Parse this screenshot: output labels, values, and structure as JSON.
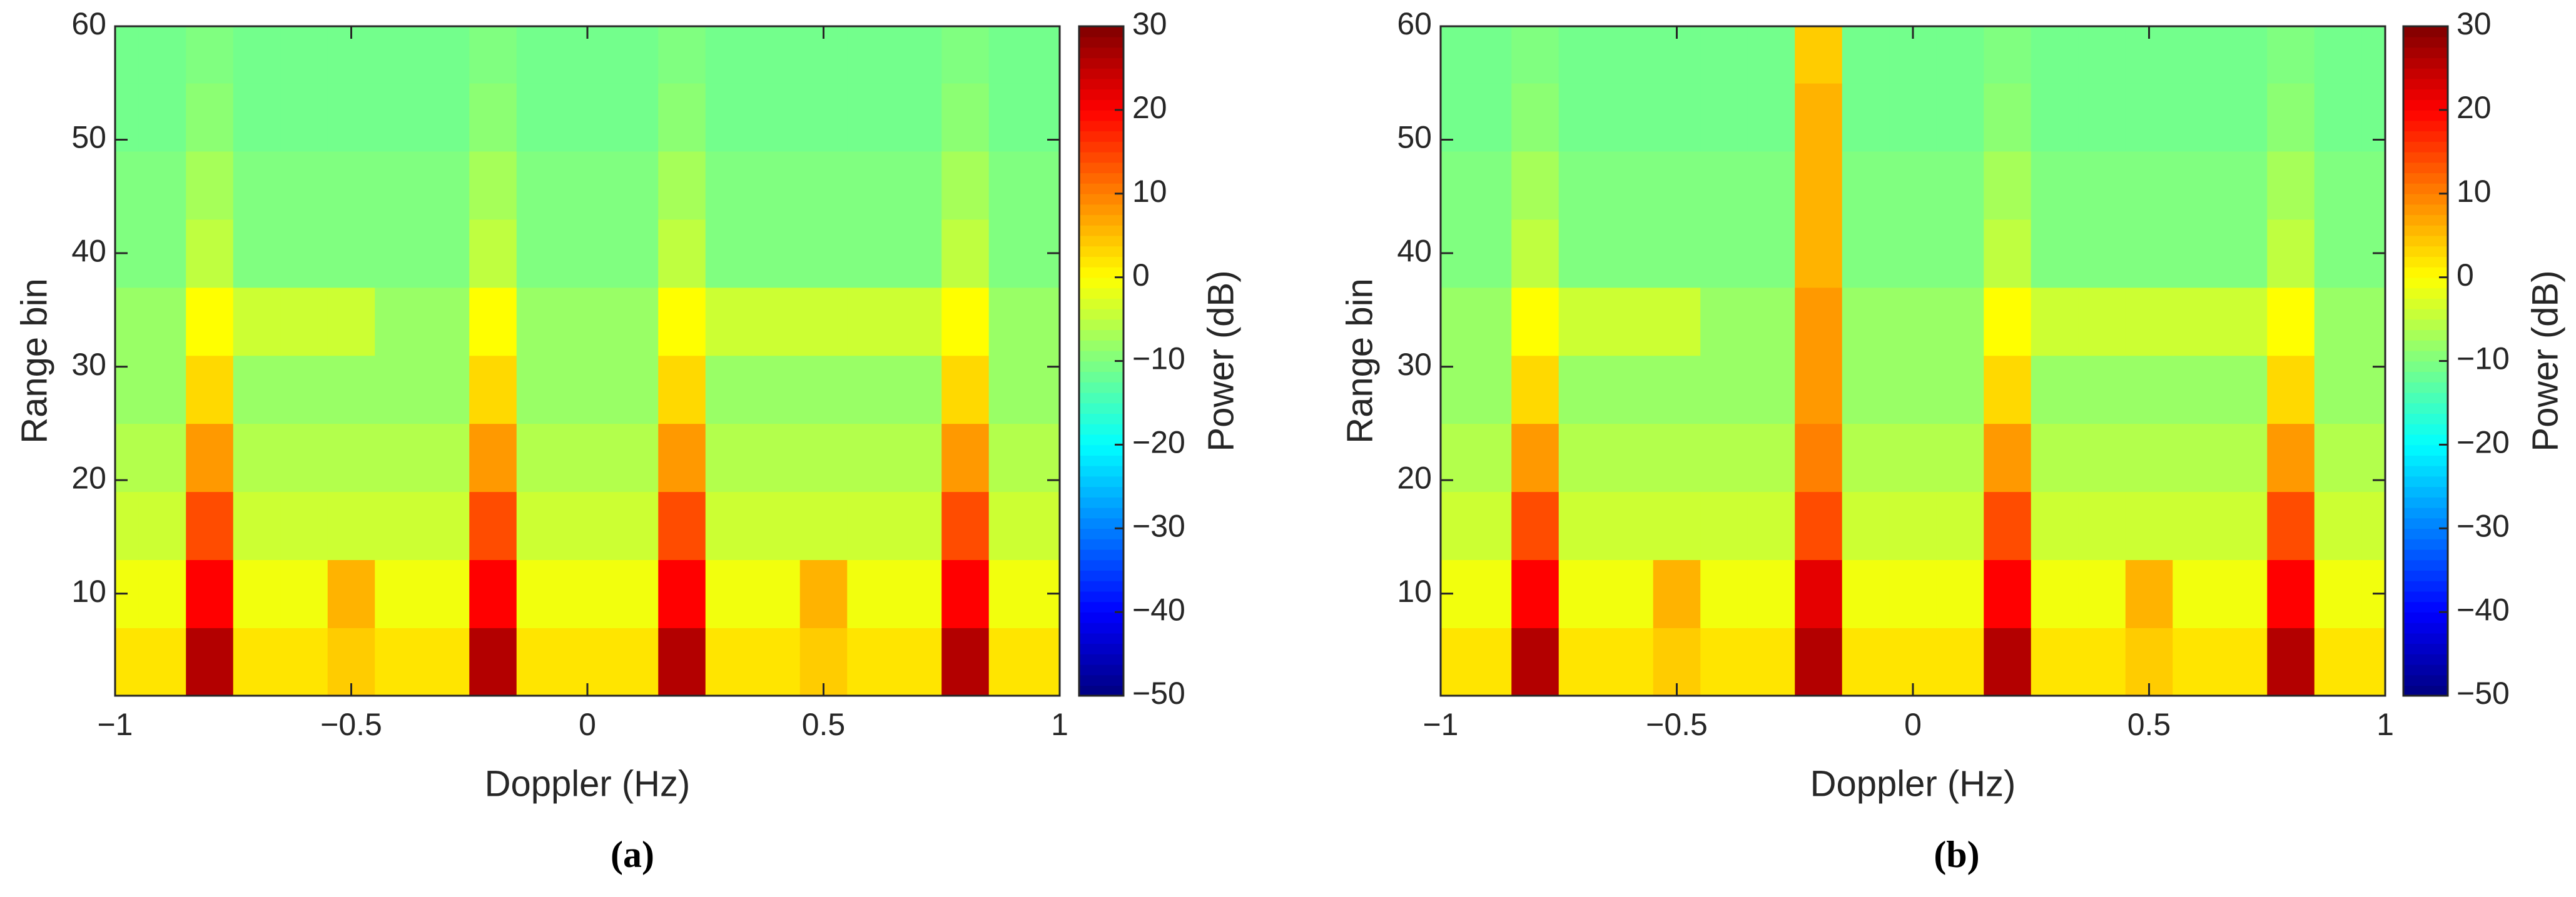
{
  "chart_data": [
    {
      "type": "heatmap",
      "subcaption": "(a)",
      "xlabel": "Doppler (Hz)",
      "ylabel": "Range bin",
      "colorbar_label": "Power (dB)",
      "xlim": [
        -1,
        1
      ],
      "ylim": [
        1,
        60
      ],
      "clim": [
        -50,
        30
      ],
      "colormap": "jet",
      "xticks": [
        {
          "value": -1,
          "label": "−1"
        },
        {
          "value": -0.5,
          "label": "−0.5"
        },
        0,
        0.5,
        1
      ],
      "yticks": [
        10,
        20,
        30,
        40,
        50,
        60
      ],
      "cticks": [
        {
          "value": -50,
          "label": "−50"
        },
        {
          "value": -40,
          "label": "−40"
        },
        {
          "value": -30,
          "label": "−30"
        },
        {
          "value": -20,
          "label": "−20"
        },
        {
          "value": -10,
          "label": "−10"
        },
        0,
        10,
        20,
        30
      ],
      "x": [
        -1,
        -0.9,
        -0.8,
        -0.7,
        -0.6,
        -0.5,
        -0.4,
        -0.3,
        -0.2,
        -0.1,
        0,
        0.1,
        0.2,
        0.3,
        0.4,
        0.5,
        0.6,
        0.7,
        0.8,
        0.9,
        1
      ],
      "y": [
        4,
        10,
        16,
        22,
        28,
        34,
        40,
        46,
        52,
        58
      ],
      "z": [
        [
          2,
          2,
          26,
          2,
          2,
          4,
          2,
          2,
          26,
          2,
          2,
          2,
          26,
          2,
          2,
          4,
          2,
          2,
          26,
          2,
          2
        ],
        [
          -1,
          -1,
          20,
          -1,
          -1,
          6,
          -1,
          -1,
          20,
          -1,
          -1,
          -1,
          20,
          -1,
          -1,
          6,
          -1,
          -1,
          20,
          -1,
          -1
        ],
        [
          -4,
          -4,
          14,
          -4,
          -4,
          -4,
          -4,
          -4,
          14,
          -4,
          -4,
          -4,
          14,
          -4,
          -4,
          -4,
          -4,
          -4,
          14,
          -4,
          -4
        ],
        [
          -6,
          -6,
          8,
          -6,
          -6,
          -6,
          -6,
          -6,
          8,
          -6,
          -6,
          -6,
          8,
          -6,
          -6,
          -6,
          -6,
          -6,
          8,
          -6,
          -6
        ],
        [
          -8,
          -8,
          3,
          -8,
          -8,
          -8,
          -8,
          -8,
          3,
          -8,
          -8,
          -8,
          3,
          -8,
          -8,
          -8,
          -8,
          -8,
          3,
          -8,
          -8
        ],
        [
          -8,
          -8,
          0,
          -4,
          -4,
          -4,
          -8,
          -8,
          0,
          -8,
          -8,
          -8,
          0,
          -4,
          -4,
          -4,
          -4,
          -4,
          0,
          -8,
          -8
        ],
        [
          -10,
          -10,
          -5,
          -10,
          -10,
          -10,
          -10,
          -10,
          -5,
          -10,
          -10,
          -10,
          -5,
          -10,
          -10,
          -10,
          -10,
          -10,
          -5,
          -10,
          -10
        ],
        [
          -10,
          -10,
          -7,
          -10,
          -10,
          -10,
          -10,
          -10,
          -7,
          -10,
          -10,
          -10,
          -7,
          -10,
          -10,
          -10,
          -10,
          -10,
          -7,
          -10,
          -10
        ],
        [
          -11,
          -11,
          -9,
          -11,
          -11,
          -11,
          -11,
          -11,
          -9,
          -11,
          -11,
          -11,
          -9,
          -11,
          -11,
          -11,
          -11,
          -11,
          -9,
          -11,
          -11
        ],
        [
          -11,
          -11,
          -10,
          -11,
          -11,
          -11,
          -11,
          -11,
          -10,
          -11,
          -11,
          -11,
          -10,
          -11,
          -11,
          -11,
          -11,
          -11,
          -10,
          -11,
          -11
        ]
      ]
    },
    {
      "type": "heatmap",
      "subcaption": "(b)",
      "xlabel": "Doppler (Hz)",
      "ylabel": "Range bin",
      "colorbar_label": "Power (dB)",
      "xlim": [
        -1,
        1
      ],
      "ylim": [
        1,
        60
      ],
      "clim": [
        -50,
        30
      ],
      "colormap": "jet",
      "xticks": [
        {
          "value": -1,
          "label": "−1"
        },
        {
          "value": -0.5,
          "label": "−0.5"
        },
        0,
        0.5,
        1
      ],
      "yticks": [
        10,
        20,
        30,
        40,
        50,
        60
      ],
      "cticks": [
        {
          "value": -50,
          "label": "−50"
        },
        {
          "value": -40,
          "label": "−40"
        },
        {
          "value": -30,
          "label": "−30"
        },
        {
          "value": -20,
          "label": "−20"
        },
        {
          "value": -10,
          "label": "−10"
        },
        0,
        10,
        20,
        30
      ],
      "x": [
        -1,
        -0.9,
        -0.8,
        -0.7,
        -0.6,
        -0.5,
        -0.4,
        -0.3,
        -0.2,
        -0.1,
        0,
        0.1,
        0.2,
        0.3,
        0.4,
        0.5,
        0.6,
        0.7,
        0.8,
        0.9,
        1
      ],
      "y": [
        4,
        10,
        16,
        22,
        28,
        34,
        40,
        46,
        52,
        58
      ],
      "z": [
        [
          2,
          2,
          26,
          2,
          2,
          4,
          2,
          2,
          26,
          2,
          2,
          2,
          26,
          2,
          2,
          4,
          2,
          2,
          26,
          2,
          2
        ],
        [
          -1,
          -1,
          20,
          -1,
          -1,
          6,
          -1,
          -1,
          22,
          -1,
          -1,
          -1,
          20,
          -1,
          -1,
          6,
          -1,
          -1,
          20,
          -1,
          -1
        ],
        [
          -4,
          -4,
          14,
          -4,
          -4,
          -4,
          -4,
          -4,
          14,
          -4,
          -4,
          -4,
          14,
          -4,
          -4,
          -4,
          -4,
          -4,
          14,
          -4,
          -4
        ],
        [
          -6,
          -6,
          8,
          -6,
          -6,
          -6,
          -6,
          -6,
          10,
          -6,
          -6,
          -6,
          8,
          -6,
          -6,
          -6,
          -6,
          -6,
          8,
          -6,
          -6
        ],
        [
          -8,
          -8,
          3,
          -8,
          -8,
          -8,
          -8,
          -8,
          8,
          -8,
          -8,
          -8,
          3,
          -8,
          -8,
          -8,
          -8,
          -8,
          3,
          -8,
          -8
        ],
        [
          -8,
          -8,
          0,
          -4,
          -4,
          -4,
          -8,
          -8,
          8,
          -8,
          -8,
          -8,
          0,
          -4,
          -4,
          -4,
          -4,
          -4,
          0,
          -8,
          -8
        ],
        [
          -10,
          -10,
          -5,
          -10,
          -10,
          -10,
          -10,
          -10,
          6,
          -10,
          -10,
          -10,
          -5,
          -10,
          -10,
          -10,
          -10,
          -10,
          -5,
          -10,
          -10
        ],
        [
          -10,
          -10,
          -7,
          -10,
          -10,
          -10,
          -10,
          -10,
          6,
          -10,
          -10,
          -10,
          -7,
          -10,
          -10,
          -10,
          -10,
          -10,
          -7,
          -10,
          -10
        ],
        [
          -11,
          -11,
          -9,
          -11,
          -11,
          -11,
          -11,
          -11,
          6,
          -11,
          -11,
          -11,
          -9,
          -11,
          -11,
          -11,
          -11,
          -11,
          -9,
          -11,
          -11
        ],
        [
          -11,
          -11,
          -10,
          -11,
          -11,
          -11,
          -11,
          -11,
          4,
          -11,
          -11,
          -11,
          -10,
          -11,
          -11,
          -11,
          -11,
          -11,
          -10,
          -11,
          -11
        ]
      ]
    }
  ]
}
